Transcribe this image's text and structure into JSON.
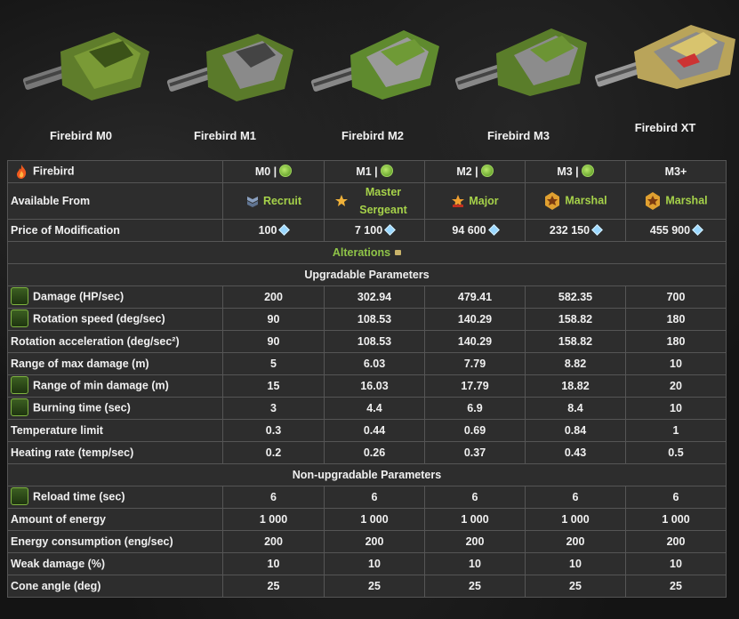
{
  "turrets": [
    {
      "name": "Firebird M0"
    },
    {
      "name": "Firebird M1"
    },
    {
      "name": "Firebird M2"
    },
    {
      "name": "Firebird M3"
    },
    {
      "name": "Firebird XT"
    }
  ],
  "table": {
    "title": "Firebird",
    "mods": [
      "M0 |",
      "M1 |",
      "M2 |",
      "M3 |",
      "M3+"
    ],
    "available_label": "Available From",
    "ranks": [
      "Recruit",
      "Master Sergeant",
      "Major",
      "Marshal",
      "Marshal"
    ],
    "price_label": "Price of Modification",
    "prices": [
      "100",
      "7 100",
      "94 600",
      "232 150",
      "455 900"
    ],
    "alterations_label": "Alterations",
    "upgradable_label": "Upgradable Parameters",
    "non_upgradable_label": "Non-upgradable Parameters",
    "upgradable": [
      {
        "label": "Damage (HP/sec)",
        "icon": "damage-icon",
        "values": [
          "200",
          "302.94",
          "479.41",
          "582.35",
          "700"
        ]
      },
      {
        "label": "Rotation speed (deg/sec)",
        "icon": "rotation-speed-icon",
        "values": [
          "90",
          "108.53",
          "140.29",
          "158.82",
          "180"
        ]
      },
      {
        "label": "Rotation acceleration (deg/sec²)",
        "icon": "",
        "values": [
          "90",
          "108.53",
          "140.29",
          "158.82",
          "180"
        ]
      },
      {
        "label": "Range of max damage (m)",
        "icon": "",
        "values": [
          "5",
          "6.03",
          "7.79",
          "8.82",
          "10"
        ]
      },
      {
        "label": "Range of min damage (m)",
        "icon": "range-icon",
        "values": [
          "15",
          "16.03",
          "17.79",
          "18.82",
          "20"
        ]
      },
      {
        "label": "Burning time (sec)",
        "icon": "burning-time-icon",
        "values": [
          "3",
          "4.4",
          "6.9",
          "8.4",
          "10"
        ]
      },
      {
        "label": "Temperature limit",
        "icon": "",
        "values": [
          "0.3",
          "0.44",
          "0.69",
          "0.84",
          "1"
        ]
      },
      {
        "label": "Heating rate (temp/sec)",
        "icon": "",
        "values": [
          "0.2",
          "0.26",
          "0.37",
          "0.43",
          "0.5"
        ]
      }
    ],
    "non_upgradable": [
      {
        "label": "Reload time (sec)",
        "icon": "reload-icon",
        "values": [
          "6",
          "6",
          "6",
          "6",
          "6"
        ]
      },
      {
        "label": "Amount of energy",
        "icon": "",
        "values": [
          "1 000",
          "1 000",
          "1 000",
          "1 000",
          "1 000"
        ]
      },
      {
        "label": "Energy consumption (eng/sec)",
        "icon": "",
        "values": [
          "200",
          "200",
          "200",
          "200",
          "200"
        ]
      },
      {
        "label": "Weak damage (%)",
        "icon": "",
        "values": [
          "10",
          "10",
          "10",
          "10",
          "10"
        ]
      },
      {
        "label": "Cone angle (deg)",
        "icon": "",
        "values": [
          "25",
          "25",
          "25",
          "25",
          "25"
        ]
      }
    ]
  },
  "colors": {
    "green_text": "#a6d24a",
    "alterations_text": "#8fc448",
    "crystal": "#9bd8ff"
  }
}
